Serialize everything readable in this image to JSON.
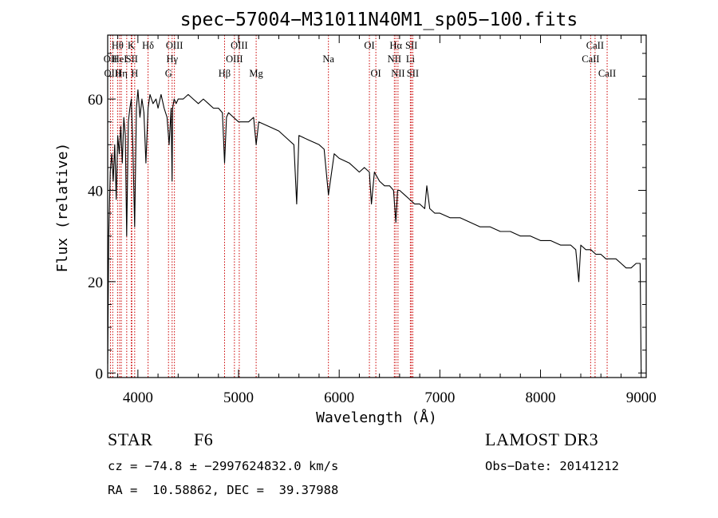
{
  "chart_data": {
    "type": "line",
    "title": "spec−57004−M31011N40M1_sp05−100.fits",
    "xlabel": "Wavelength (Å)",
    "ylabel": "Flux (relative)",
    "xlim": [
      3700,
      9050
    ],
    "ylim": [
      -1,
      74
    ],
    "xticks": [
      4000,
      5000,
      6000,
      7000,
      8000,
      9000
    ],
    "yticks": [
      0,
      20,
      40,
      60
    ],
    "grid": false,
    "line_color": "#000000",
    "marker_color": "#cc0000",
    "spectrum": {
      "x": [
        3700,
        3710,
        3725,
        3740,
        3755,
        3770,
        3785,
        3800,
        3815,
        3830,
        3845,
        3860,
        3875,
        3889,
        3905,
        3920,
        3935,
        3950,
        3968,
        3985,
        4000,
        4020,
        4040,
        4060,
        4080,
        4101,
        4120,
        4150,
        4180,
        4200,
        4230,
        4260,
        4290,
        4310,
        4330,
        4340,
        4345,
        4360,
        4380,
        4400,
        4450,
        4500,
        4550,
        4600,
        4650,
        4700,
        4750,
        4800,
        4840,
        4861,
        4880,
        4900,
        4950,
        5000,
        5050,
        5100,
        5150,
        5175,
        5200,
        5300,
        5400,
        5500,
        5550,
        5578,
        5600,
        5700,
        5800,
        5850,
        5893,
        5950,
        6000,
        6100,
        6200,
        6250,
        6300,
        6320,
        6350,
        6400,
        6450,
        6500,
        6540,
        6563,
        6580,
        6600,
        6650,
        6700,
        6750,
        6800,
        6850,
        6870,
        6900,
        6950,
        7000,
        7100,
        7200,
        7300,
        7400,
        7500,
        7600,
        7700,
        7800,
        7900,
        8000,
        8100,
        8200,
        8300,
        8350,
        8380,
        8400,
        8450,
        8500,
        8550,
        8600,
        8650,
        8700,
        8750,
        8800,
        8850,
        8900,
        8950,
        8990,
        9000
      ],
      "y": [
        2,
        30,
        44,
        48,
        42,
        50,
        38,
        52,
        48,
        54,
        46,
        56,
        52,
        30,
        55,
        58,
        60,
        50,
        32,
        58,
        62,
        56,
        60,
        57,
        46,
        58,
        61,
        59,
        60,
        58,
        61,
        58,
        56,
        50,
        58,
        42,
        58,
        60,
        59,
        60,
        60,
        61,
        60,
        59,
        60,
        59,
        58,
        58,
        57,
        46,
        56,
        57,
        56,
        55,
        55,
        55,
        56,
        50,
        55,
        54,
        53,
        51,
        50,
        37,
        52,
        51,
        50,
        49,
        39,
        48,
        47,
        46,
        44,
        45,
        44,
        37,
        44,
        42,
        41,
        41,
        40,
        33,
        40,
        40,
        39,
        38,
        37,
        37,
        36,
        41,
        36,
        35,
        35,
        34,
        34,
        33,
        32,
        32,
        31,
        31,
        30,
        30,
        29,
        29,
        28,
        28,
        27,
        20,
        28,
        27,
        27,
        26,
        26,
        25,
        25,
        25,
        24,
        23,
        23,
        24,
        24,
        0
      ]
    },
    "emission_lines": [
      {
        "wavelength": 3727,
        "label": "OII",
        "label_row": 2
      },
      {
        "wavelength": 3750,
        "label": "OIII",
        "label_row": 3
      },
      {
        "wavelength": 3798,
        "label": "Hθ",
        "label_row": 1
      },
      {
        "wavelength": 3819,
        "label": "HeI",
        "label_row": 2
      },
      {
        "wavelength": 3835,
        "label": "Hη",
        "label_row": 3
      },
      {
        "wavelength": 3889,
        "label": "",
        "label_row": 0
      },
      {
        "wavelength": 3934,
        "label": "K",
        "label_row": 1
      },
      {
        "wavelength": 3940,
        "label": "SII",
        "label_row": 2
      },
      {
        "wavelength": 3968,
        "label": "H",
        "label_row": 3
      },
      {
        "wavelength": 4101,
        "label": "Hδ",
        "label_row": 1
      },
      {
        "wavelength": 4304,
        "label": "G",
        "label_row": 3
      },
      {
        "wavelength": 4340,
        "label": "Hγ",
        "label_row": 2
      },
      {
        "wavelength": 4363,
        "label": "OIII",
        "label_row": 1
      },
      {
        "wavelength": 4861,
        "label": "Hβ",
        "label_row": 3
      },
      {
        "wavelength": 4959,
        "label": "OIII",
        "label_row": 2
      },
      {
        "wavelength": 5007,
        "label": "OIII",
        "label_row": 1
      },
      {
        "wavelength": 5175,
        "label": "Mg",
        "label_row": 3
      },
      {
        "wavelength": 5893,
        "label": "Na",
        "label_row": 2
      },
      {
        "wavelength": 6300,
        "label": "OI",
        "label_row": 1
      },
      {
        "wavelength": 6364,
        "label": "OI",
        "label_row": 3
      },
      {
        "wavelength": 6548,
        "label": "NII",
        "label_row": 2
      },
      {
        "wavelength": 6563,
        "label": "Hα",
        "label_row": 1
      },
      {
        "wavelength": 6584,
        "label": "NII",
        "label_row": 3
      },
      {
        "wavelength": 6707,
        "label": "Li",
        "label_row": 2
      },
      {
        "wavelength": 6717,
        "label": "SII",
        "label_row": 1
      },
      {
        "wavelength": 6731,
        "label": "SII",
        "label_row": 3
      },
      {
        "wavelength": 8498,
        "label": "CaII",
        "label_row": 2
      },
      {
        "wavelength": 8542,
        "label": "CaII",
        "label_row": 1
      },
      {
        "wavelength": 8662,
        "label": "CaII",
        "label_row": 3
      }
    ]
  },
  "info": {
    "object_class": "STAR",
    "subclass": "F6",
    "survey": "LAMOST DR3",
    "redshift_line": "cz = −74.8 ± −2997624832.0 km/s",
    "obs_date_line": "Obs−Date: 20141212",
    "coords_line": "RA =  10.58862, DEC =  39.37988"
  }
}
